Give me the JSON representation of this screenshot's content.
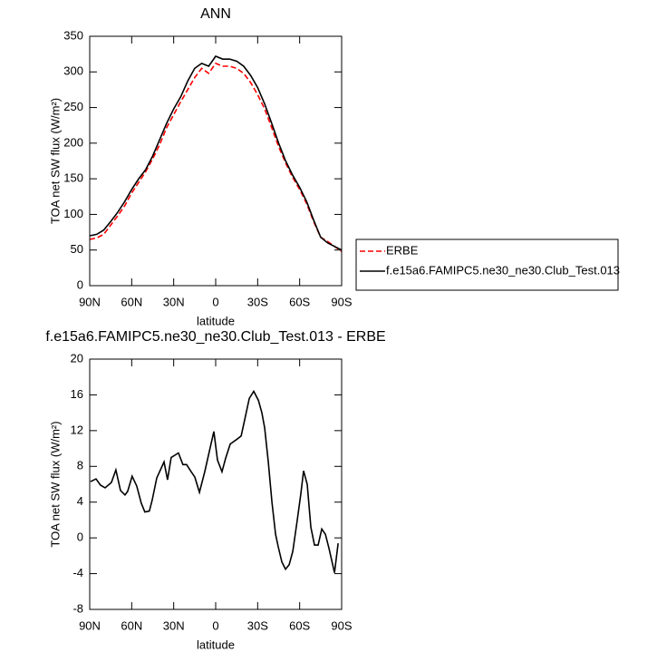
{
  "chart_data": [
    {
      "type": "line",
      "title": "ANN",
      "xlabel": "latitude",
      "ylabel": "TOA net SW flux (W/m²)",
      "x": [
        90,
        85,
        80,
        75,
        70,
        65,
        60,
        55,
        50,
        45,
        40,
        35,
        30,
        25,
        20,
        15,
        10,
        5,
        0,
        -5,
        -10,
        -15,
        -20,
        -25,
        -30,
        -35,
        -40,
        -45,
        -50,
        -55,
        -60,
        -65,
        -70,
        -75,
        -80,
        -85,
        -90
      ],
      "series": [
        {
          "name": "ERBE",
          "color": "#ff0000",
          "dash": true,
          "values": [
            65,
            67,
            72,
            85,
            98,
            112,
            130,
            145,
            160,
            178,
            198,
            222,
            240,
            258,
            275,
            292,
            305,
            298,
            312,
            308,
            308,
            305,
            298,
            285,
            268,
            248,
            222,
            195,
            172,
            152,
            135,
            115,
            90,
            68,
            62,
            55,
            48
          ]
        },
        {
          "name": "f.e15a6.FAMIPC5.ne30_ne30.Club_Test.013",
          "color": "#000000",
          "dash": false,
          "values": [
            70,
            72,
            78,
            90,
            103,
            118,
            135,
            150,
            163,
            182,
            205,
            228,
            248,
            265,
            287,
            305,
            312,
            308,
            322,
            318,
            318,
            315,
            308,
            295,
            278,
            255,
            228,
            200,
            175,
            155,
            138,
            118,
            92,
            68,
            60,
            55,
            50
          ]
        }
      ],
      "xlim": [
        90,
        -90
      ],
      "xticks": [
        {
          "value": 90,
          "label": "90N"
        },
        {
          "value": 60,
          "label": "60N"
        },
        {
          "value": 30,
          "label": "30N"
        },
        0,
        {
          "value": -30,
          "label": "30S"
        },
        {
          "value": -60,
          "label": "60S"
        },
        {
          "value": -90,
          "label": "90S"
        }
      ],
      "ylim": [
        0,
        350
      ],
      "yticks": [
        0,
        50,
        100,
        150,
        200,
        250,
        300,
        350
      ],
      "legend": "right"
    },
    {
      "type": "line",
      "title": "f.e15a6.FAMIPC5.ne30_ne30.Club_Test.013 - ERBE",
      "xlabel": "latitude",
      "ylabel": "TOA net SW flux (W/m²)",
      "x": [
        89.4,
        85.5,
        82.3,
        79,
        74.5,
        71.3,
        68,
        64.8,
        62.9,
        59.7,
        56.4,
        53.2,
        50.6,
        47.4,
        45.4,
        42.1,
        36.9,
        34.4,
        31.8,
        26.6,
        23.4,
        20.8,
        17.5,
        14.9,
        11.6,
        7.8,
        4.5,
        1.3,
        -1.3,
        -4.5,
        -7.1,
        -10.4,
        -14.9,
        -18.2,
        -20.7,
        -24,
        -27.2,
        -30.5,
        -33,
        -35,
        -37.6,
        -40.2,
        -42.8,
        -44.7,
        -47.3,
        -49.9,
        -52.5,
        -55.1,
        -58.3,
        -60.9,
        -62.8,
        -65.4,
        -68,
        -70.6,
        -73.2,
        -75.8,
        -78.4,
        -81,
        -84.9,
        -87.5
      ],
      "values": [
        6.3,
        6.6,
        5.9,
        5.6,
        6.2,
        7.6,
        5.3,
        4.8,
        5.2,
        6.9,
        5.8,
        3.9,
        2.9,
        3.0,
        4.2,
        6.7,
        8.5,
        6.5,
        9.0,
        9.5,
        8.2,
        8.2,
        7.4,
        6.8,
        5.1,
        7.4,
        9.7,
        11.9,
        8.7,
        7.4,
        8.9,
        10.5,
        11.0,
        11.4,
        13.2,
        15.6,
        16.4,
        15.4,
        14.0,
        12.3,
        8.5,
        4.0,
        0.4,
        -1.0,
        -2.7,
        -3.5,
        -3.0,
        -1.5,
        2.0,
        5.0,
        7.5,
        6.0,
        1.2,
        -0.8,
        -0.8,
        1.0,
        0.4,
        -1.2,
        -3.9,
        -0.6
      ],
      "color": "#000000",
      "xlim": [
        90,
        -90
      ],
      "xticks": [
        {
          "value": 90,
          "label": "90N"
        },
        {
          "value": 60,
          "label": "60N"
        },
        {
          "value": 30,
          "label": "30N"
        },
        0,
        {
          "value": -30,
          "label": "30S"
        },
        {
          "value": -60,
          "label": "60S"
        },
        {
          "value": -90,
          "label": "90S"
        }
      ],
      "ylim": [
        -8,
        20
      ],
      "yticks": [
        -8,
        -4,
        0,
        4,
        8,
        12,
        16,
        20
      ]
    }
  ]
}
